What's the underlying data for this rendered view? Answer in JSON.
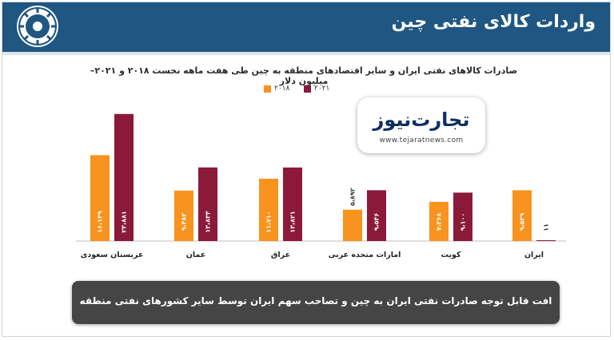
{
  "header": {
    "title": "واردات کالای نفتی چین"
  },
  "badge": {
    "main": "تجارت‌نیوز",
    "sub": "www.tejaratnews.com"
  },
  "chart_data": {
    "type": "bar",
    "title": "صادرات کالاهای نفتی ایران و سایر اقتصادهای منطقه به چین طی هفت ماهه نخست ۲۰۱۸ و ۲۰۲۱– میلیون دلار",
    "categories": [
      "عربستان سعودی",
      "عمان",
      "عراق",
      "امارات متحده عربی",
      "کویت",
      "ایران"
    ],
    "series": [
      {
        "name": "۲۰۱۸",
        "values": [
          16139,
          9482,
          11710,
          5892,
          7368,
          9539
        ],
        "labels": [
          "۱۶،۱۳۹",
          "۹،۴۸۲",
          "۱۱،۷۱۰",
          "۵،۸۹۲",
          "۷،۳۶۸",
          "۹،۵۳۹"
        ],
        "color": "#f7931e"
      },
      {
        "name": "۲۰۲۱",
        "values": [
          23881,
          13833,
          13821,
          9546,
          9100,
          11
        ],
        "labels": [
          "۲۳،۸۸۱",
          "۱۳،۸۳۳",
          "۱۳،۸۲۱",
          "۹،۵۴۶",
          "۹،۱۰۰",
          "۱۱"
        ],
        "color": "#8b1a3a"
      }
    ],
    "xlabel": "",
    "ylabel": "",
    "ylim": [
      0,
      24000
    ],
    "grid": false,
    "legend": "top-center"
  },
  "note": {
    "text": "افت قابل توجه صادرات نفتی ایران به چین و تصاحب سهم ایران توسط سایر کشورهای نفتی منطقه"
  }
}
